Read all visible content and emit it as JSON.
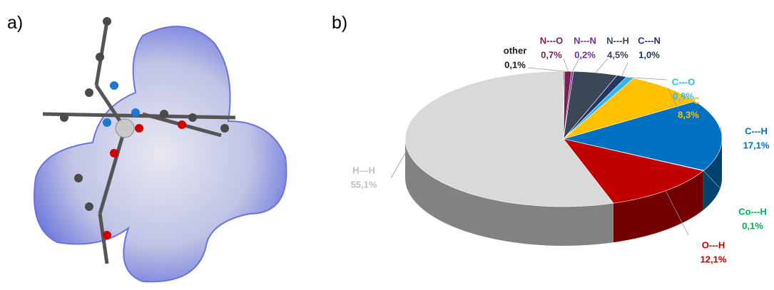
{
  "panel_labels": [
    "a)",
    "b)"
  ],
  "chart_data": {
    "type": "pie",
    "categories": [
      "other",
      "N---O",
      "N---N",
      "N---H",
      "C---N",
      "C---O",
      "C---C",
      "C---H",
      "Co---H",
      "O---H",
      "H---H"
    ],
    "values": [
      0.1,
      0.7,
      0.2,
      4.5,
      1.0,
      0.8,
      8.3,
      17.1,
      0.1,
      12.1,
      55.1
    ],
    "value_labels": [
      "0,1%",
      "0,7%",
      "0,2%",
      "4,5%",
      "1,0%",
      "0,8%",
      "8,3%",
      "17,1%",
      "0,1%",
      "12,1%",
      "55,1%"
    ],
    "colors": [
      "#1a1a1a",
      "#7a1f4f",
      "#7030a0",
      "#3b4656",
      "#1f3864",
      "#33b5f0",
      "#ffc000",
      "#0070c0",
      "#00b050",
      "#c00000",
      "#d9d9d9"
    ]
  }
}
